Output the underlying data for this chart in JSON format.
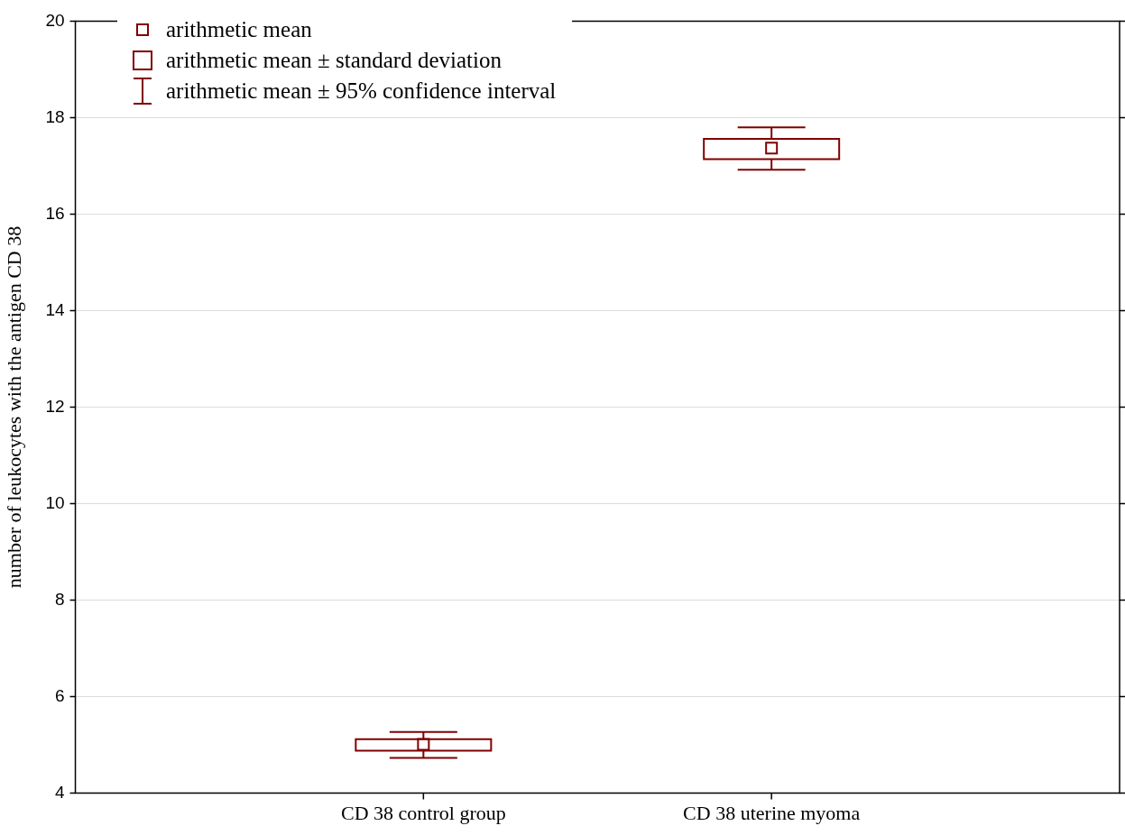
{
  "chart_data": {
    "type": "box",
    "ylabel": "number of leukocytes with the antigen CD 38",
    "categories": [
      "CD 38 control group",
      "CD 38 uterine myoma"
    ],
    "boxes": [
      {
        "low": 4.73,
        "q1": 4.88,
        "median": 5.01,
        "q3": 5.12,
        "high": 5.27
      },
      {
        "low": 16.92,
        "q1": 17.14,
        "median": 17.37,
        "q3": 17.56,
        "high": 17.8
      }
    ],
    "color": "#800000",
    "ylim": [
      4,
      20
    ],
    "yticks": [
      4,
      6,
      8,
      10,
      12,
      14,
      16,
      18,
      20
    ],
    "grid": "y",
    "annotations": [
      "arithmetic mean",
      "arithmetic mean ± standard deviation",
      "arithmetic mean ± 95% confidence interval"
    ]
  }
}
